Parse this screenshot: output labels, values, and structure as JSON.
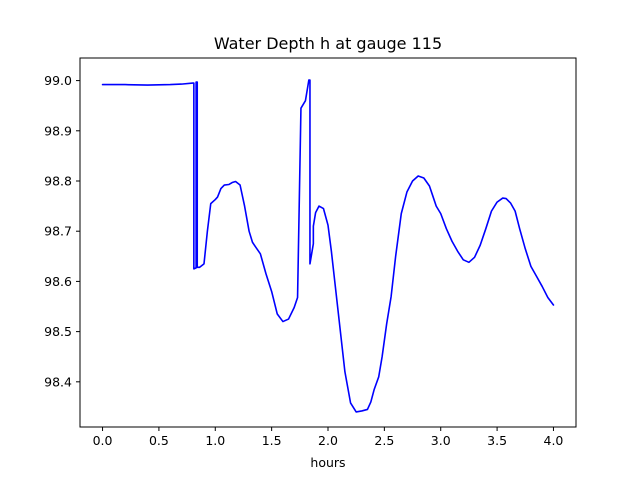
{
  "chart_data": {
    "type": "line",
    "title": "Water Depth h at gauge 115",
    "xlabel": "hours",
    "ylabel": "",
    "xlim": [
      -0.2,
      4.2
    ],
    "ylim": [
      98.31,
      99.045
    ],
    "xticks": [
      0.0,
      0.5,
      1.0,
      1.5,
      2.0,
      2.5,
      3.0,
      3.5,
      4.0
    ],
    "xtick_labels": [
      "0.0",
      "0.5",
      "1.0",
      "1.5",
      "2.0",
      "2.5",
      "3.0",
      "3.5",
      "4.0"
    ],
    "yticks": [
      98.4,
      98.5,
      98.6,
      98.7,
      98.8,
      98.9,
      99.0
    ],
    "ytick_labels": [
      "98.4",
      "98.5",
      "98.6",
      "98.7",
      "98.8",
      "98.9",
      "99.0"
    ],
    "grid": false,
    "series": [
      {
        "color": "#0000ff",
        "x": [
          0.0,
          0.2,
          0.4,
          0.6,
          0.7,
          0.8,
          0.81,
          0.81,
          0.83,
          0.83,
          0.84,
          0.84,
          0.86,
          0.9,
          0.93,
          0.96,
          1.0,
          1.02,
          1.05,
          1.08,
          1.12,
          1.15,
          1.18,
          1.22,
          1.26,
          1.3,
          1.33,
          1.36,
          1.4,
          1.45,
          1.5,
          1.55,
          1.6,
          1.65,
          1.7,
          1.73,
          1.76,
          1.8,
          1.83,
          1.84,
          1.84,
          1.87,
          1.87,
          1.89,
          1.92,
          1.96,
          2.0,
          2.03,
          2.06,
          2.1,
          2.15,
          2.2,
          2.25,
          2.3,
          2.35,
          2.38,
          2.41,
          2.45,
          2.48,
          2.52,
          2.56,
          2.6,
          2.65,
          2.7,
          2.75,
          2.8,
          2.85,
          2.9,
          2.93,
          2.96,
          3.0,
          3.05,
          3.1,
          3.15,
          3.2,
          3.25,
          3.3,
          3.35,
          3.4,
          3.45,
          3.5,
          3.55,
          3.58,
          3.62,
          3.66,
          3.7,
          3.75,
          3.8,
          3.85,
          3.9,
          3.95,
          4.0
        ],
        "y": [
          98.992,
          98.992,
          98.991,
          98.992,
          98.993,
          98.995,
          98.995,
          98.625,
          98.627,
          98.997,
          98.997,
          98.628,
          98.628,
          98.635,
          98.7,
          98.755,
          98.763,
          98.768,
          98.785,
          98.792,
          98.793,
          98.797,
          98.799,
          98.792,
          98.75,
          98.7,
          98.678,
          98.668,
          98.655,
          98.615,
          98.58,
          98.535,
          98.52,
          98.525,
          98.548,
          98.568,
          98.945,
          98.96,
          99.001,
          99.001,
          98.635,
          98.675,
          98.71,
          98.737,
          98.75,
          98.745,
          98.712,
          98.66,
          98.6,
          98.52,
          98.42,
          98.358,
          98.34,
          98.342,
          98.345,
          98.36,
          98.385,
          98.41,
          98.45,
          98.515,
          98.57,
          98.65,
          98.735,
          98.778,
          98.8,
          98.81,
          98.806,
          98.79,
          98.77,
          98.75,
          98.735,
          98.705,
          98.68,
          98.66,
          98.643,
          98.638,
          98.648,
          98.672,
          98.705,
          98.74,
          98.758,
          98.766,
          98.765,
          98.756,
          98.74,
          98.705,
          98.665,
          98.63,
          98.61,
          98.59,
          98.568,
          98.553
        ]
      }
    ]
  }
}
